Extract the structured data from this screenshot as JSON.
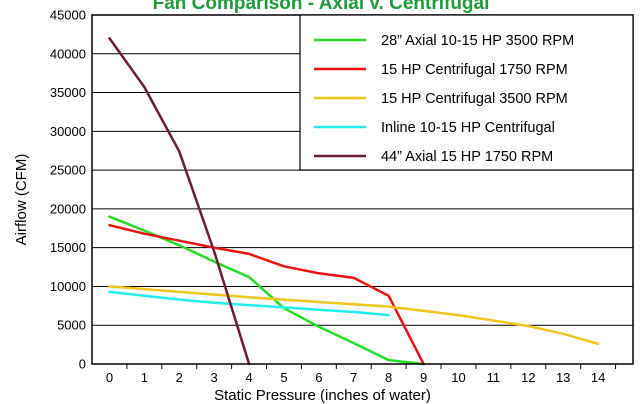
{
  "chart_data": {
    "type": "line",
    "title": "Fan Comparison - Axial v. Centrifugal",
    "xlabel": "Static Pressure (inches of water)",
    "ylabel": "Airflow (CFM)",
    "xlim": [
      -0.5,
      15
    ],
    "ylim": [
      0,
      45000
    ],
    "x_ticks": [
      "0",
      "1",
      "2",
      "3",
      "4",
      "5",
      "6",
      "7",
      "8",
      "9",
      "10",
      "11",
      "12",
      "13",
      "14"
    ],
    "y_ticks": [
      "0",
      "5000",
      "10000",
      "15000",
      "20000",
      "25000",
      "30000",
      "35000",
      "40000",
      "45000"
    ],
    "grid": "horizontal",
    "legend_position": "top-right",
    "series": [
      {
        "name": "28” Axial 10-15 HP 3500 RPM",
        "color": "#22dd22",
        "points": [
          [
            0,
            19000
          ],
          [
            1,
            17200
          ],
          [
            2,
            15300
          ],
          [
            3,
            13200
          ],
          [
            4,
            11200
          ],
          [
            5,
            7200
          ],
          [
            6,
            4800
          ],
          [
            7,
            2700
          ],
          [
            8,
            500
          ],
          [
            9,
            0
          ]
        ]
      },
      {
        "name": "15 HP Centrifugal 1750 RPM",
        "color": "#ee1111",
        "points": [
          [
            0,
            17900
          ],
          [
            1,
            16800
          ],
          [
            2,
            15900
          ],
          [
            3,
            15000
          ],
          [
            4,
            14200
          ],
          [
            5,
            12600
          ],
          [
            6,
            11700
          ],
          [
            7,
            11100
          ],
          [
            8,
            8800
          ],
          [
            9,
            0
          ]
        ]
      },
      {
        "name": "15 HP Centrifugal 3500 RPM",
        "color": "#f2c51a",
        "points": [
          [
            0,
            10000
          ],
          [
            2,
            9300
          ],
          [
            4,
            8600
          ],
          [
            6,
            8000
          ],
          [
            8,
            7400
          ],
          [
            10,
            6300
          ],
          [
            12,
            4900
          ],
          [
            13,
            3900
          ],
          [
            14,
            2600
          ]
        ]
      },
      {
        "name": "Inline 10-15 HP Centrifugal",
        "color": "#22eeee",
        "points": [
          [
            0,
            9300
          ],
          [
            1,
            8800
          ],
          [
            2,
            8300
          ],
          [
            3,
            7900
          ],
          [
            4,
            7600
          ],
          [
            5,
            7300
          ],
          [
            6,
            7000
          ],
          [
            7,
            6700
          ],
          [
            8,
            6300
          ]
        ]
      },
      {
        "name": "44” Axial 15 HP 1750 RPM",
        "color": "#6b1a3a",
        "points": [
          [
            0,
            42000
          ],
          [
            1,
            35700
          ],
          [
            2,
            27400
          ],
          [
            3,
            14500
          ],
          [
            4,
            0
          ]
        ]
      }
    ]
  }
}
